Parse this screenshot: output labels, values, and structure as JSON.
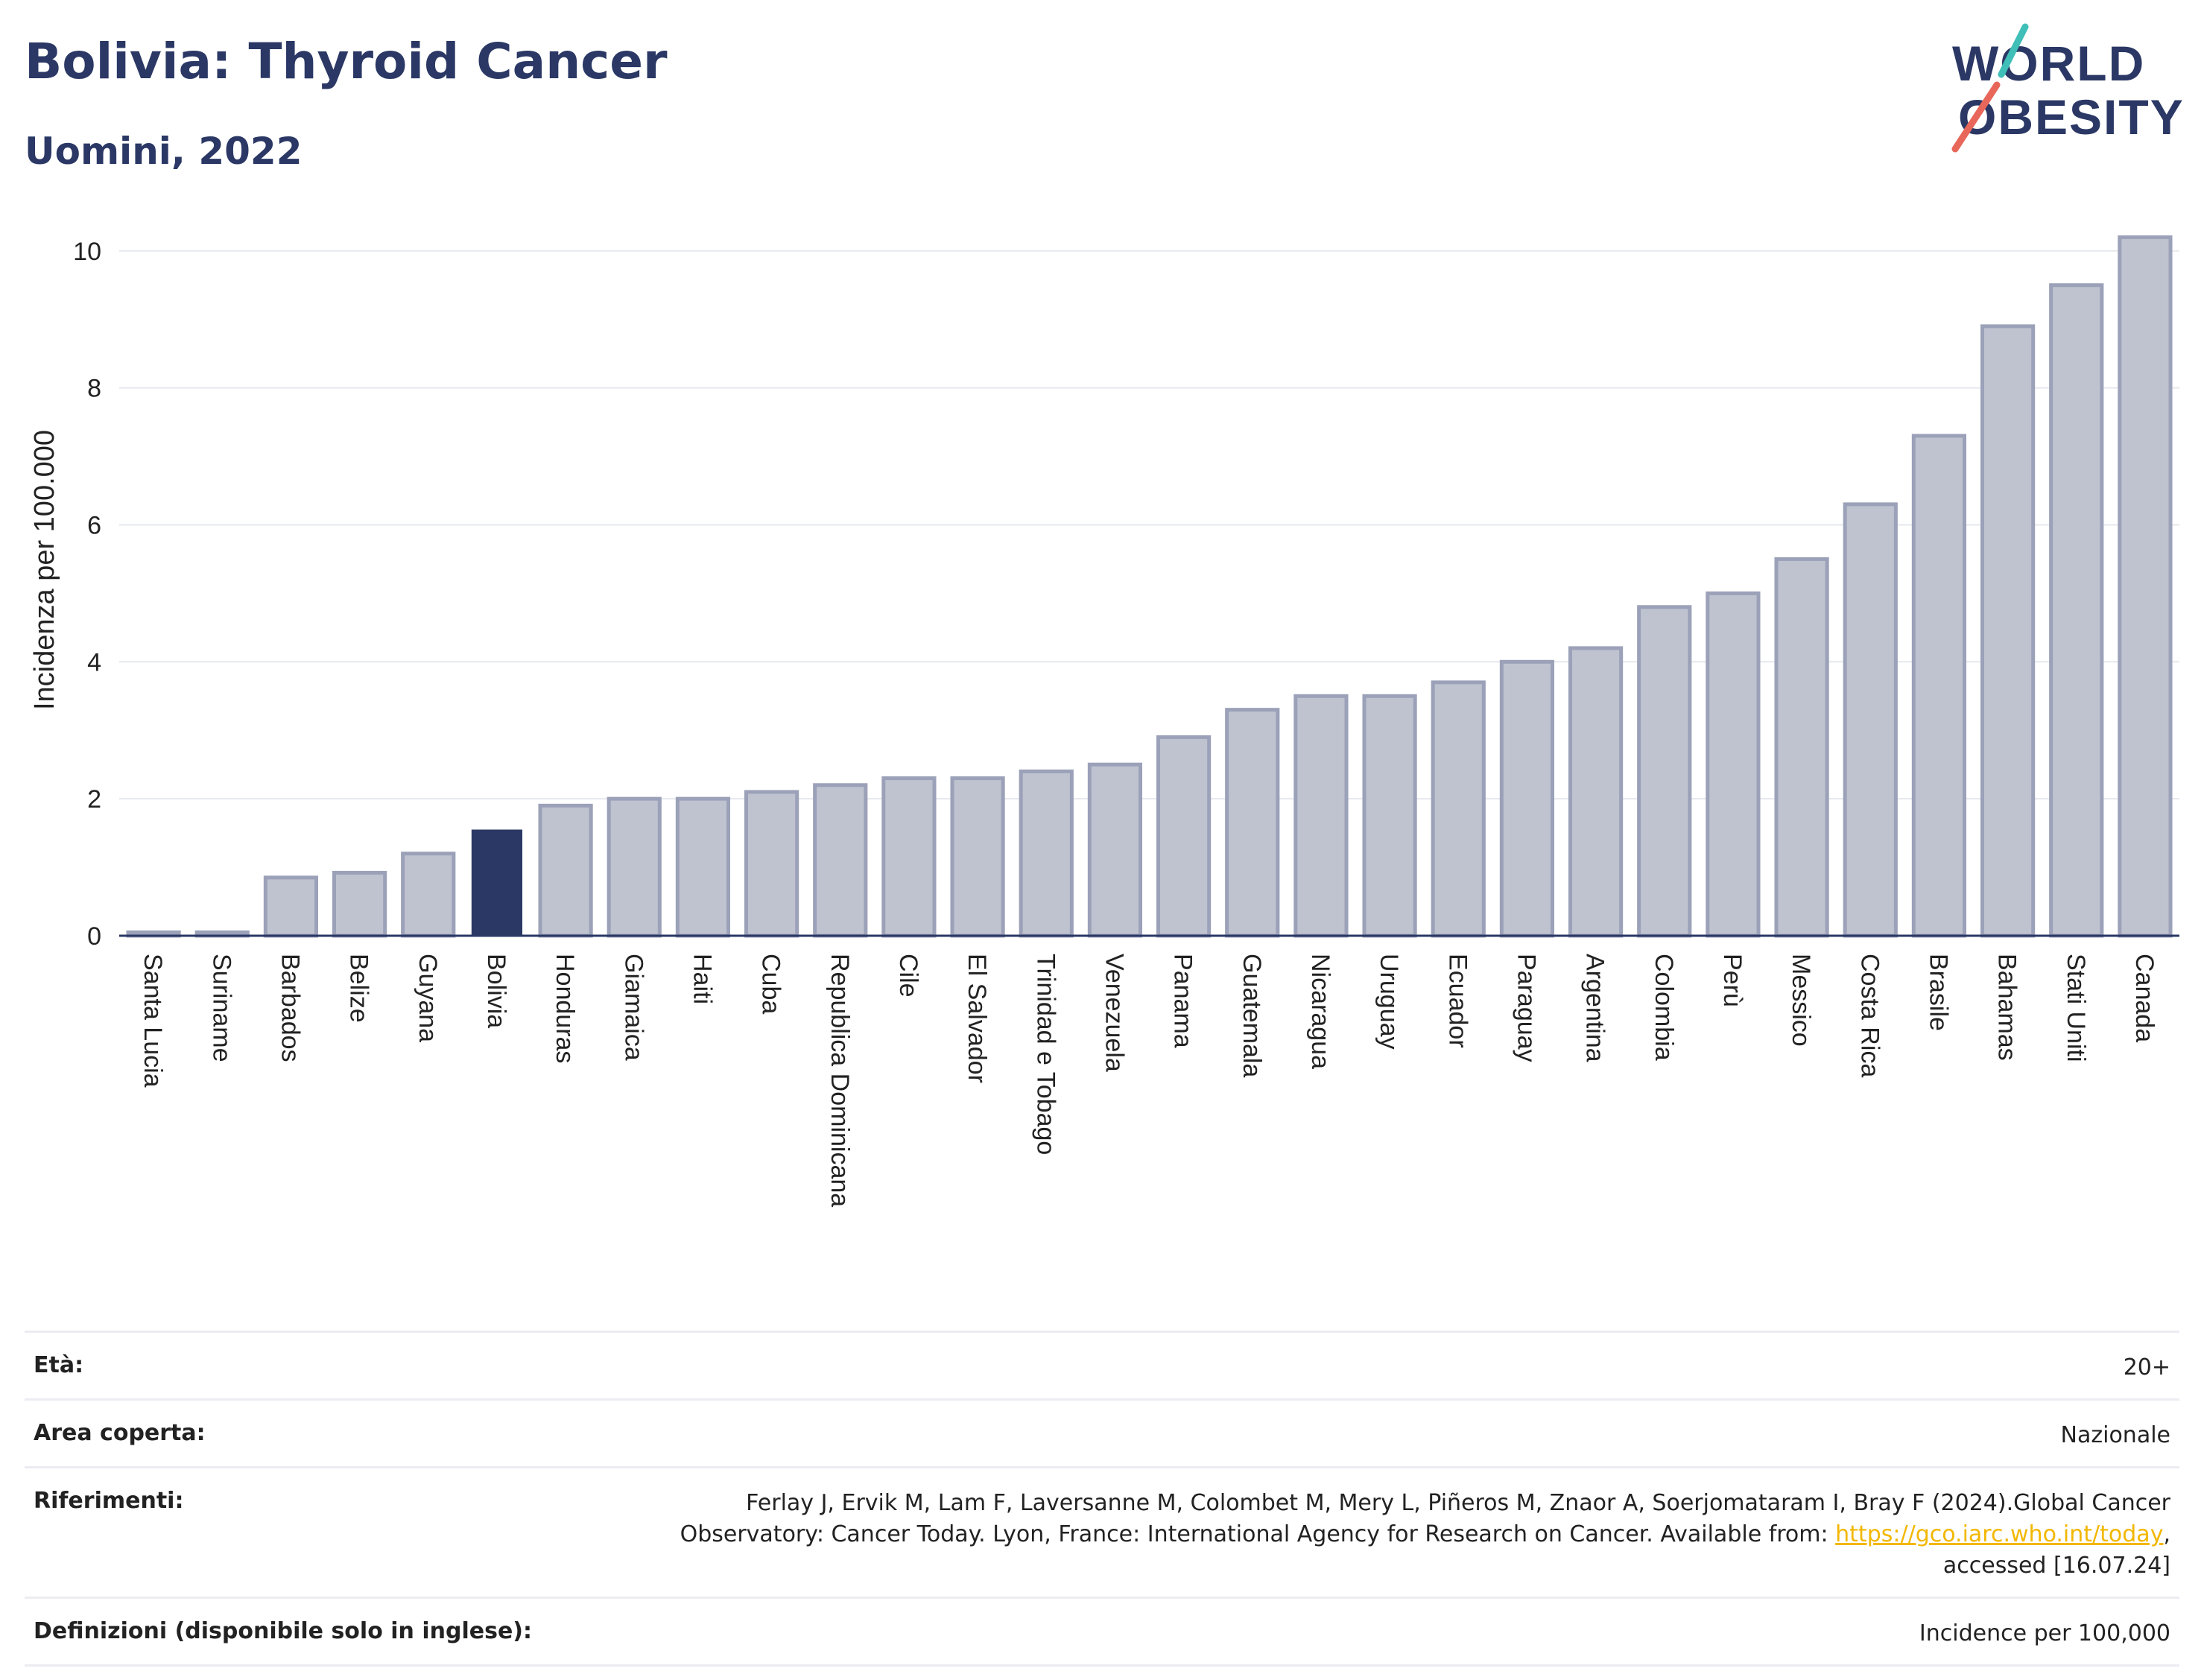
{
  "title": "Bolivia: Thyroid Cancer",
  "subtitle": "Uomini, 2022",
  "logo": {
    "line1": "WORLD",
    "line2": "OBESITY"
  },
  "colors": {
    "highlight": "#2b3865",
    "bar": "#bfc3d0",
    "bar_stroke": "#9ba1b8",
    "title": "#2b3865",
    "link": "#f2b700"
  },
  "chart_data": {
    "type": "bar",
    "ylabel": "Incidenza per 100.000",
    "xlabel": "",
    "ylim": [
      0,
      10.4
    ],
    "yticks": [
      0,
      2,
      4,
      6,
      8,
      10
    ],
    "grid": true,
    "highlight": "Bolivia",
    "categories": [
      "Santa Lucia",
      "Suriname",
      "Barbados",
      "Belize",
      "Guyana",
      "Bolivia",
      "Honduras",
      "Giamaica",
      "Haiti",
      "Cuba",
      "Republica Dominicana",
      "Cile",
      "El Salvador",
      "Trinidad e Tobago",
      "Venezuela",
      "Panama",
      "Guatemala",
      "Nicaragua",
      "Uruguay",
      "Ecuador",
      "Paraguay",
      "Argentina",
      "Colombia",
      "Perù",
      "Messico",
      "Costa Rica",
      "Brasile",
      "Bahamas",
      "Stati Uniti",
      "Canada"
    ],
    "values": [
      0.05,
      0.05,
      0.85,
      0.92,
      1.2,
      1.55,
      1.9,
      2.0,
      2.0,
      2.1,
      2.2,
      2.3,
      2.3,
      2.4,
      2.5,
      2.9,
      3.3,
      3.5,
      3.5,
      3.7,
      4.0,
      4.2,
      4.8,
      5.0,
      5.5,
      6.3,
      7.3,
      8.9,
      9.5,
      10.2
    ]
  },
  "meta": {
    "eta_label": "Età:",
    "eta_value": "20+",
    "area_label": "Area coperta:",
    "area_value": "Nazionale",
    "rif_label": "Riferimenti:",
    "rif_text1": "Ferlay J, Ervik M, Lam F, Laversanne M, Colombet M, Mery L, Piñeros M, Znaor A, Soerjomataram I, Bray F (2024).Global Cancer",
    "rif_text2": "Observatory: Cancer Today. Lyon, France: International Agency for Research on Cancer. Available from: ",
    "rif_link": "https://gco.iarc.who.int/today",
    "rif_text3": ",",
    "rif_text4": "accessed [16.07.24]",
    "def_label": "Definizioni (disponibile solo in inglese):",
    "def_value": "Incidence per 100,000"
  }
}
